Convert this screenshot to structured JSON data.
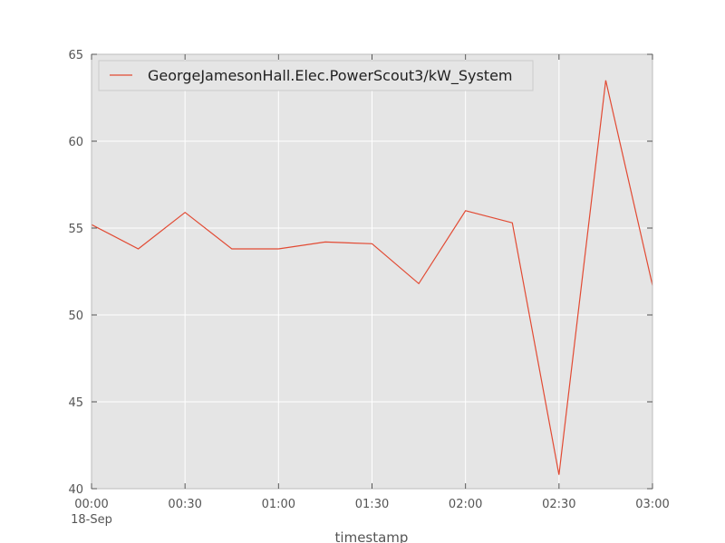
{
  "chart_data": {
    "type": "line",
    "title": "",
    "xlabel": "timestamp",
    "ylabel": "",
    "x": [
      "00:00",
      "00:15",
      "00:30",
      "00:45",
      "01:00",
      "01:15",
      "01:30",
      "01:45",
      "02:00",
      "02:15",
      "02:30",
      "02:45",
      "03:00"
    ],
    "x_ticks": [
      "00:00",
      "00:30",
      "01:00",
      "01:30",
      "02:00",
      "02:30",
      "03:00"
    ],
    "x_date_label": "18-Sep",
    "ylim": [
      40,
      65
    ],
    "y_ticks": [
      "40",
      "45",
      "50",
      "55",
      "60",
      "65"
    ],
    "grid": true,
    "legend_position": "top-left",
    "series": [
      {
        "name": "GeorgeJamesonHall.Elec.PowerScout3/kW_System",
        "color": "#e24a33",
        "values": [
          55.2,
          53.8,
          55.9,
          53.8,
          53.8,
          54.2,
          54.1,
          51.8,
          56.0,
          55.3,
          40.8,
          63.5,
          51.7
        ]
      }
    ]
  }
}
